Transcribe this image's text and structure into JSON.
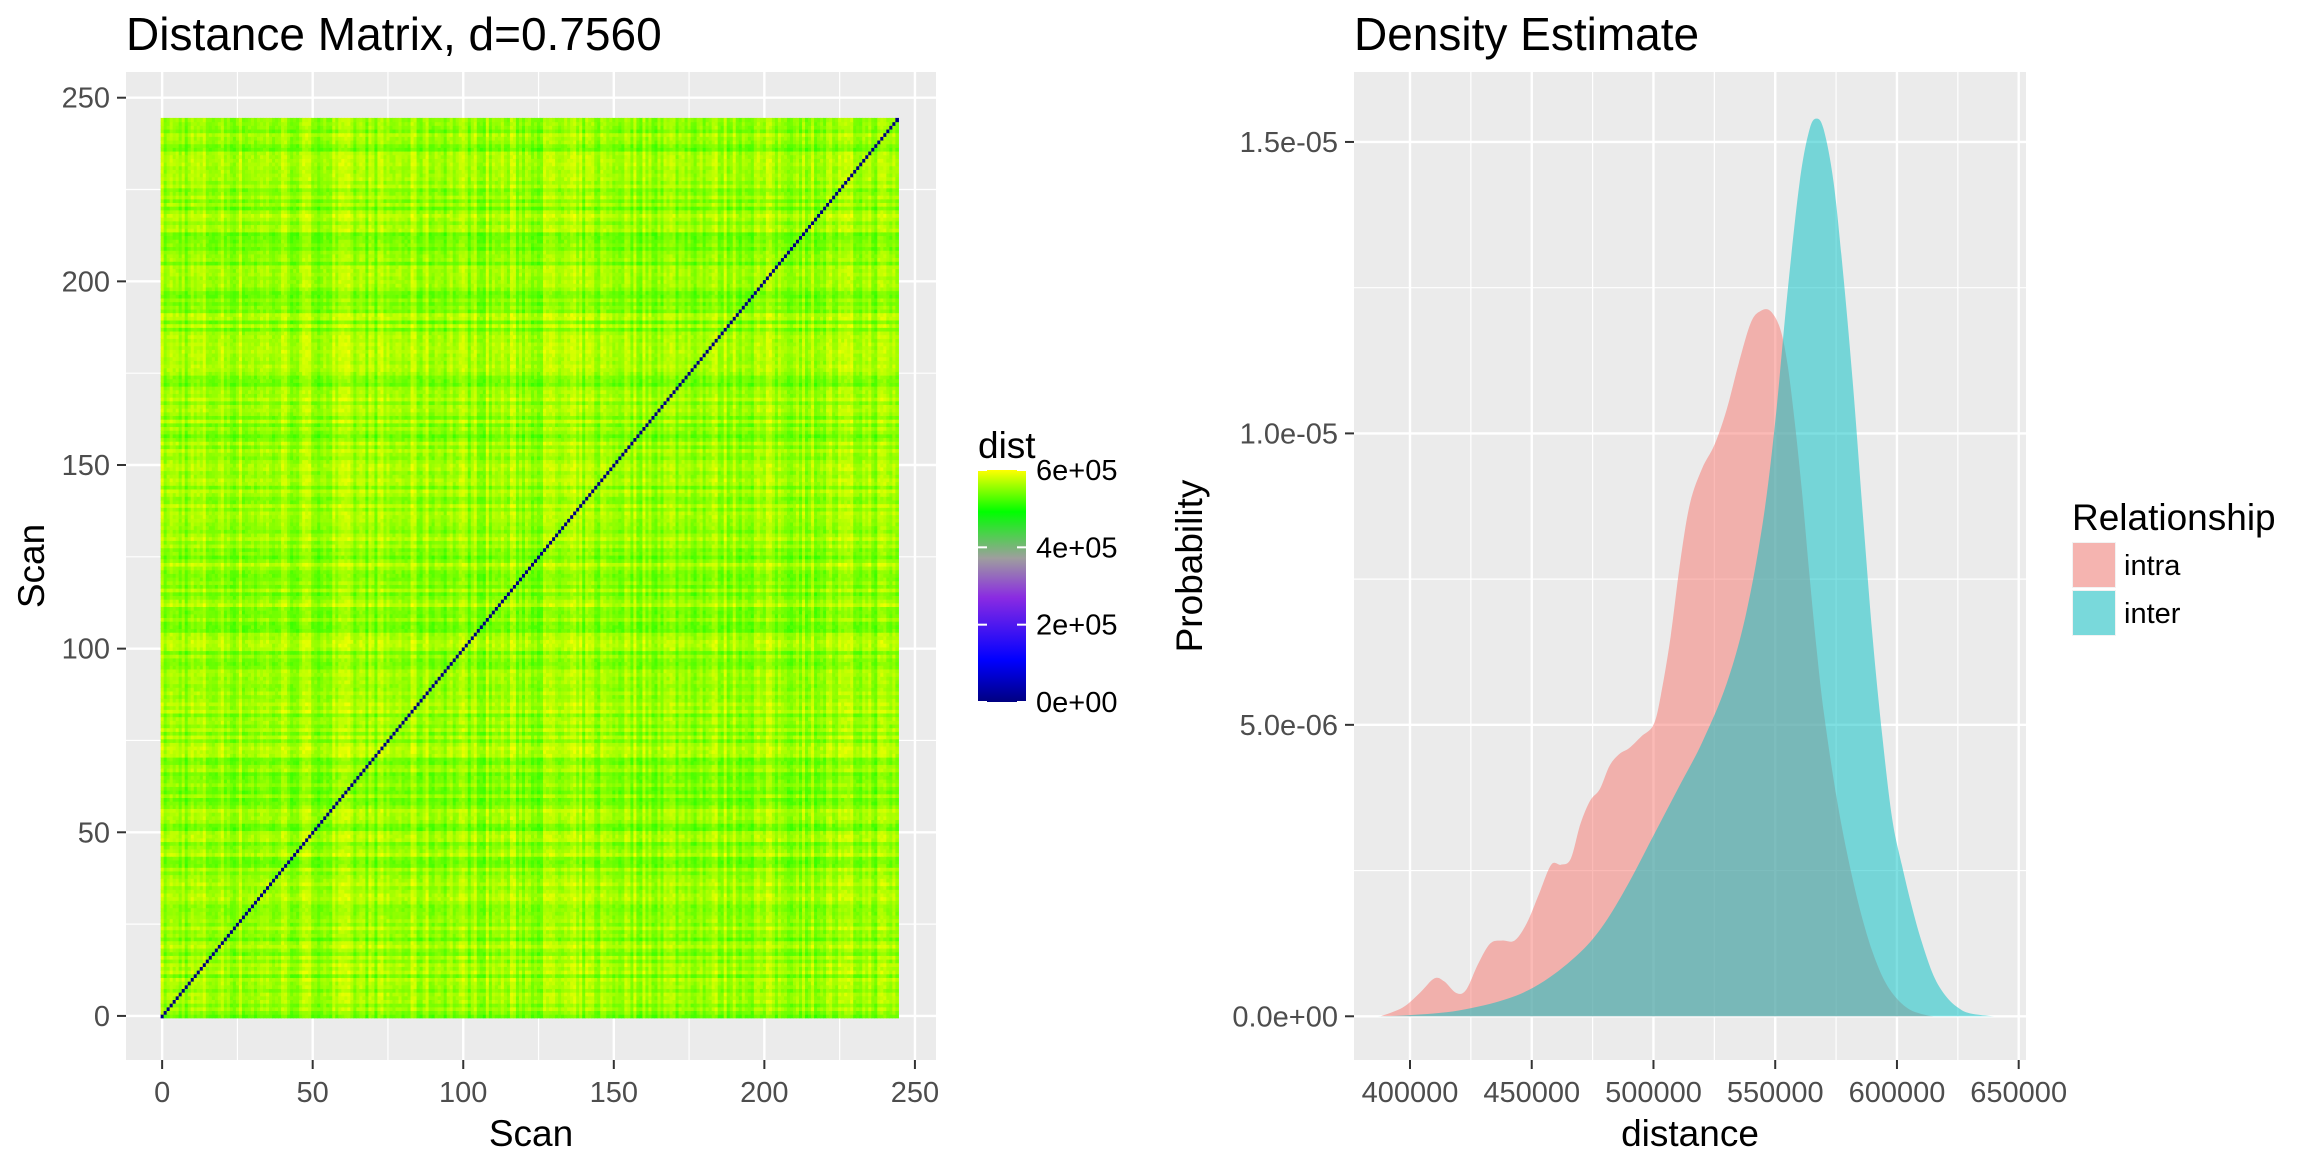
{
  "chart_data": [
    {
      "type": "heatmap",
      "title": "Distance Matrix, d=0.7560",
      "xlabel": "Scan",
      "ylabel": "Scan",
      "n_scans": 245,
      "xlim": [
        -12,
        257
      ],
      "ylim": [
        -12,
        257
      ],
      "x_ticks": [
        0,
        50,
        100,
        150,
        200,
        250
      ],
      "y_ticks": [
        0,
        50,
        100,
        150,
        200,
        250
      ],
      "x_tick_labels": [
        "0",
        "50",
        "100",
        "150",
        "200",
        "250"
      ],
      "y_tick_labels": [
        "0",
        "50",
        "100",
        "150",
        "200",
        "250"
      ],
      "grid": true,
      "diagonal_value": 0,
      "typical_offdiagonal_range": [
        460000,
        600000
      ],
      "legend": {
        "title": "dist",
        "position": "right",
        "range": [
          0,
          600000
        ],
        "breaks": [
          0,
          200000,
          400000,
          600000
        ],
        "labels": [
          "0e+00",
          "2e+05",
          "4e+05",
          "6e+05"
        ],
        "colors": [
          "#000080",
          "#0000ff",
          "#8a2be2",
          "#9e9e9e",
          "#00ff00",
          "#ffff00"
        ]
      }
    },
    {
      "type": "area",
      "title": "Density Estimate",
      "xlabel": "distance",
      "ylabel": "Probability",
      "xlim": [
        377000,
        653000
      ],
      "ylim": [
        -7.5e-07,
        1.62e-05
      ],
      "x_ticks": [
        400000,
        450000,
        500000,
        550000,
        600000,
        650000
      ],
      "y_ticks": [
        0,
        5e-06,
        1e-05,
        1.5e-05
      ],
      "x_tick_labels": [
        "400000",
        "450000",
        "500000",
        "550000",
        "600000",
        "650000"
      ],
      "y_tick_labels": [
        "0.0e+00",
        "5.0e-06",
        "1.0e-05",
        "1.5e-05"
      ],
      "grid": true,
      "legend": {
        "title": "Relationship",
        "position": "right"
      },
      "series": [
        {
          "name": "intra",
          "color": "#F8766D",
          "opacity": 0.5,
          "x": [
            388000,
            397000,
            404000,
            410000,
            414000,
            419000,
            423000,
            428000,
            433000,
            438000,
            443000,
            448000,
            453000,
            458000,
            462000,
            466000,
            470000,
            474000,
            478000,
            482000,
            486000,
            490000,
            495000,
            500000,
            503000,
            507000,
            511000,
            515000,
            520000,
            525000,
            530000,
            535000,
            540000,
            544000,
            548000,
            552000,
            555000,
            558000,
            561000,
            564000,
            567000,
            570000,
            575000,
            580000,
            585000,
            590000,
            595000,
            600000,
            605000,
            610000,
            615000
          ],
          "values": [
            0.0,
            1.5e-07,
            4e-07,
            6.5e-07,
            6e-07,
            4e-07,
            4.5e-07,
            9e-07,
            1.25e-06,
            1.3e-06,
            1.3e-06,
            1.6e-06,
            2.1e-06,
            2.6e-06,
            2.6e-06,
            2.7e-06,
            3.3e-06,
            3.7e-06,
            3.9e-06,
            4.3e-06,
            4.5e-06,
            4.6e-06,
            4.8e-06,
            5e-06,
            5.5e-06,
            6.5e-06,
            7.8e-06,
            8.8e-06,
            9.4e-06,
            9.8e-06,
            1.04e-05,
            1.12e-05,
            1.19e-05,
            1.21e-05,
            1.21e-05,
            1.18e-05,
            1.12e-05,
            1.02e-05,
            9e-06,
            7.6e-06,
            6.3e-06,
            5.2e-06,
            3.8e-06,
            2.7e-06,
            1.8e-06,
            1.1e-06,
            6e-07,
            3e-07,
            1.2e-07,
            4e-08,
            0.0
          ]
        },
        {
          "name": "inter",
          "color": "#00BFC4",
          "opacity": 0.5,
          "x": [
            385000,
            400000,
            420000,
            440000,
            455000,
            470000,
            480000,
            490000,
            500000,
            510000,
            520000,
            530000,
            538000,
            545000,
            550000,
            555000,
            560000,
            564000,
            567000,
            570000,
            574000,
            578000,
            582000,
            586000,
            590000,
            594000,
            598000,
            602000,
            606000,
            610000,
            615000,
            620000,
            625000,
            630000,
            640000,
            645000
          ],
          "values": [
            0.0,
            2e-08,
            1e-07,
            3e-07,
            6e-07,
            1.1e-06,
            1.6e-06,
            2.3e-06,
            3.1e-06,
            3.9e-06,
            4.7e-06,
            5.7e-06,
            6.9e-06,
            8.5e-06,
            1.02e-05,
            1.24e-05,
            1.43e-05,
            1.52e-05,
            1.54e-05,
            1.52e-05,
            1.43e-05,
            1.27e-05,
            1.08e-05,
            8.6e-06,
            6.5e-06,
            4.8e-06,
            3.4e-06,
            2.6e-06,
            1.9e-06,
            1.3e-06,
            7e-07,
            3.5e-07,
            1.5e-07,
            5e-08,
            0.0,
            0.0
          ]
        }
      ]
    }
  ]
}
